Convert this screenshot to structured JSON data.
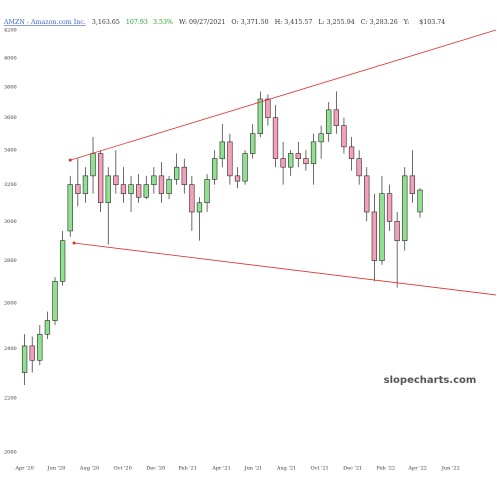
{
  "chart_data": {
    "type": "candlestick",
    "header": {
      "ticker": "AMZN - Amazon.com Inc.",
      "last": "3,163.65",
      "change": "107.93",
      "change_pct": "3.53%",
      "date": "W: 09/27/2021",
      "open": "O: 3,371.50",
      "high": "H: 3,415.57",
      "low": "L: 3,255.94",
      "close": "C: 3,283.26",
      "y": "Y:",
      "y_value": "$103.74"
    },
    "watermark": "slopecharts.com",
    "log_scale": true,
    "grid": false,
    "up_color": "#8fe08f",
    "down_color": "#f4a0b8",
    "outline_color": "#2a2a2a",
    "xlim": [
      -2,
      124
    ],
    "xticks": [
      {
        "value": 0,
        "label": "Apr '20"
      },
      {
        "value": 8.4,
        "label": "Jun '20"
      },
      {
        "value": 17.1,
        "label": "Aug '20"
      },
      {
        "value": 25.8,
        "label": "Oct '20"
      },
      {
        "value": 34.5,
        "label": "Dec '20"
      },
      {
        "value": 42.9,
        "label": "Feb '21"
      },
      {
        "value": 51.8,
        "label": "Apr '21"
      },
      {
        "value": 60.2,
        "label": "Jun '21"
      },
      {
        "value": 68.9,
        "label": "Aug '21"
      },
      {
        "value": 77.6,
        "label": "Oct '21"
      },
      {
        "value": 86.3,
        "label": "Dec '21"
      },
      {
        "value": 95,
        "label": "Feb '22"
      },
      {
        "value": 103.4,
        "label": "Apr '22"
      },
      {
        "value": 112.1,
        "label": "Jun '22"
      }
    ],
    "ylim": [
      2000,
      4200
    ],
    "yticks": [
      2000,
      2200,
      2400,
      2600,
      2800,
      3000,
      3200,
      3400,
      3600,
      3800,
      4000,
      4200
    ],
    "x": [
      0,
      2,
      4,
      6,
      8,
      10,
      12,
      14,
      16,
      18,
      20,
      22,
      24,
      26,
      28,
      30,
      32,
      34,
      36,
      38,
      40,
      42,
      44,
      46,
      48,
      50,
      52,
      54,
      56,
      58,
      60,
      62,
      64,
      66,
      68,
      70,
      72,
      74,
      76,
      78,
      80,
      82,
      84,
      86,
      88,
      90,
      92,
      94,
      96,
      98,
      100,
      102,
      104
    ],
    "open": [
      2300,
      2410,
      2350,
      2460,
      2520,
      2700,
      2950,
      3200,
      3150,
      3250,
      3380,
      3100,
      3250,
      3200,
      3150,
      3200,
      3130,
      3200,
      3250,
      3150,
      3230,
      3300,
      3200,
      3050,
      3100,
      3230,
      3350,
      3450,
      3250,
      3220,
      3380,
      3500,
      3720,
      3600,
      3350,
      3300,
      3380,
      3350,
      3320,
      3450,
      3500,
      3650,
      3550,
      3420,
      3350,
      3250,
      3050,
      2800,
      3150,
      3000,
      2900,
      3250,
      3050
    ],
    "high": [
      2460,
      2450,
      2500,
      2560,
      2720,
      2950,
      3250,
      3350,
      3300,
      3480,
      3400,
      3300,
      3400,
      3300,
      3250,
      3260,
      3250,
      3300,
      3330,
      3250,
      3380,
      3350,
      3250,
      3130,
      3260,
      3400,
      3560,
      3500,
      3300,
      3400,
      3560,
      3770,
      3750,
      3680,
      3450,
      3400,
      3450,
      3400,
      3500,
      3550,
      3700,
      3770,
      3600,
      3480,
      3400,
      3300,
      3150,
      3250,
      3200,
      3050,
      3300,
      3400,
      3180
    ],
    "low": [
      2250,
      2300,
      2330,
      2440,
      2500,
      2680,
      2920,
      3080,
      3100,
      3150,
      3050,
      2880,
      3150,
      3100,
      3050,
      3100,
      3120,
      3150,
      3100,
      3120,
      3200,
      3150,
      2950,
      2900,
      3050,
      3200,
      3300,
      3200,
      3180,
      3200,
      3350,
      3480,
      3550,
      3300,
      3200,
      3250,
      3300,
      3280,
      3200,
      3350,
      3450,
      3500,
      3380,
      3280,
      3200,
      3000,
      2700,
      2780,
      2950,
      2670,
      2850,
      3100,
      3020
    ],
    "close": [
      2410,
      2350,
      2460,
      2520,
      2700,
      2900,
      3200,
      3150,
      3250,
      3380,
      3100,
      3250,
      3200,
      3150,
      3200,
      3130,
      3200,
      3250,
      3150,
      3230,
      3300,
      3200,
      3050,
      3100,
      3230,
      3350,
      3450,
      3250,
      3220,
      3380,
      3500,
      3720,
      3600,
      3350,
      3300,
      3380,
      3350,
      3320,
      3450,
      3500,
      3650,
      3550,
      3420,
      3350,
      3250,
      3050,
      2800,
      3150,
      3000,
      2900,
      3250,
      3150,
      3170
    ],
    "trendlines": [
      {
        "color": "#e03030",
        "x": [
          12,
          124
        ],
        "y": [
          3341,
          4200
        ]
      },
      {
        "color": "#e03030",
        "x": [
          13,
          124
        ],
        "y": [
          2888,
          2636
        ]
      }
    ]
  }
}
